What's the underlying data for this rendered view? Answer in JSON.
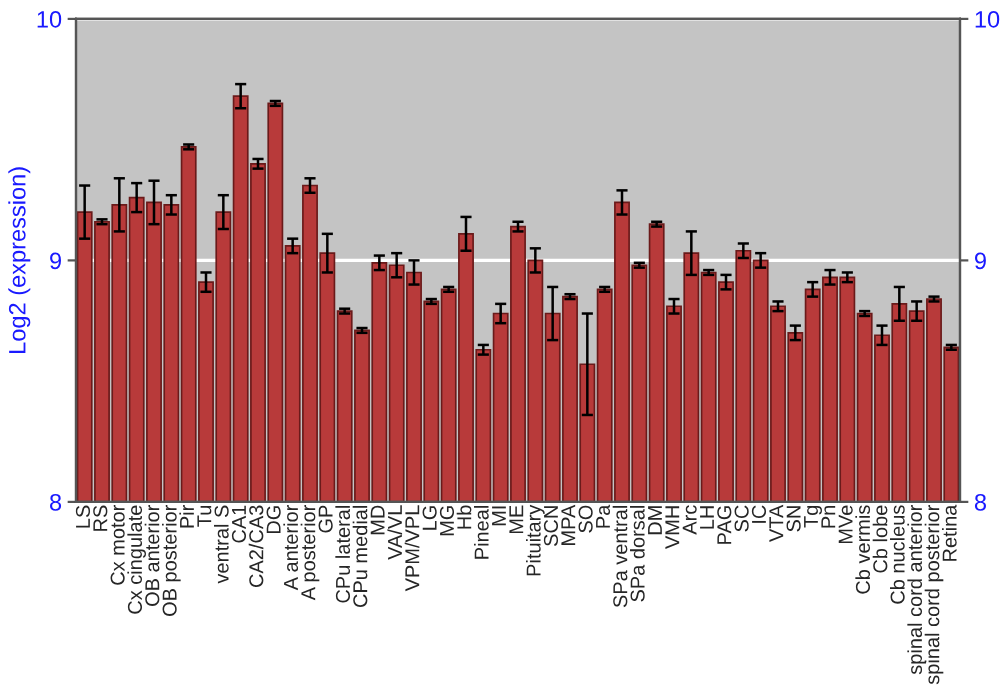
{
  "chart_data": {
    "type": "bar",
    "ylabel": "Log2 (expression)",
    "categories": [
      "LS",
      "RS",
      "Cx motor",
      "Cx cingulate",
      "OB anterior",
      "OB posterior",
      "Pir",
      "Tu",
      "ventral S",
      "CA1",
      "CA2/CA3",
      "DG",
      "A anterior",
      "A posterior",
      "GP",
      "CPu lateral",
      "CPu medial",
      "MD",
      "VA/VL",
      "VPM/VPL",
      "LG",
      "MG",
      "Hb",
      "Pineal",
      "MI",
      "ME",
      "Pituitary",
      "SCN",
      "MPA",
      "SO",
      "Pa",
      "SPa ventral",
      "SPa dorsal",
      "DM",
      "VMH",
      "Arc",
      "LH",
      "PAG",
      "SC",
      "IC",
      "VTA",
      "SN",
      "Tg",
      "Pn",
      "MVe",
      "Cb vermis",
      "Cb lobe",
      "Cb nucleus",
      "spinal cord anterior",
      "spinal cord posterior",
      "Retina"
    ],
    "values": [
      9.2,
      9.16,
      9.23,
      9.26,
      9.24,
      9.23,
      9.47,
      8.91,
      9.2,
      9.68,
      9.4,
      9.65,
      9.06,
      9.31,
      9.03,
      8.79,
      8.71,
      8.99,
      8.98,
      8.95,
      8.83,
      8.88,
      9.11,
      8.63,
      8.78,
      9.14,
      9.0,
      8.78,
      8.85,
      8.57,
      8.88,
      9.24,
      8.98,
      9.15,
      8.81,
      9.03,
      8.95,
      8.91,
      9.04,
      9.0,
      8.81,
      8.7,
      8.88,
      8.93,
      8.93,
      8.78,
      8.69,
      8.82,
      8.79,
      8.84,
      8.64
    ],
    "errors": [
      0.11,
      0.01,
      0.11,
      0.06,
      0.09,
      0.04,
      0.01,
      0.04,
      0.07,
      0.05,
      0.02,
      0.01,
      0.03,
      0.03,
      0.08,
      0.01,
      0.01,
      0.03,
      0.05,
      0.05,
      0.01,
      0.01,
      0.07,
      0.02,
      0.04,
      0.02,
      0.05,
      0.11,
      0.01,
      0.21,
      0.01,
      0.05,
      0.01,
      0.01,
      0.03,
      0.09,
      0.01,
      0.03,
      0.03,
      0.03,
      0.02,
      0.03,
      0.03,
      0.03,
      0.02,
      0.01,
      0.04,
      0.07,
      0.04,
      0.01,
      0.01
    ],
    "color": "#b83a3a",
    "ylim": [
      8,
      10
    ],
    "yticks": [
      8,
      9,
      10
    ],
    "y2lim": [
      8,
      10
    ],
    "y2ticks": [
      8,
      9,
      10
    ],
    "grid": "y"
  }
}
